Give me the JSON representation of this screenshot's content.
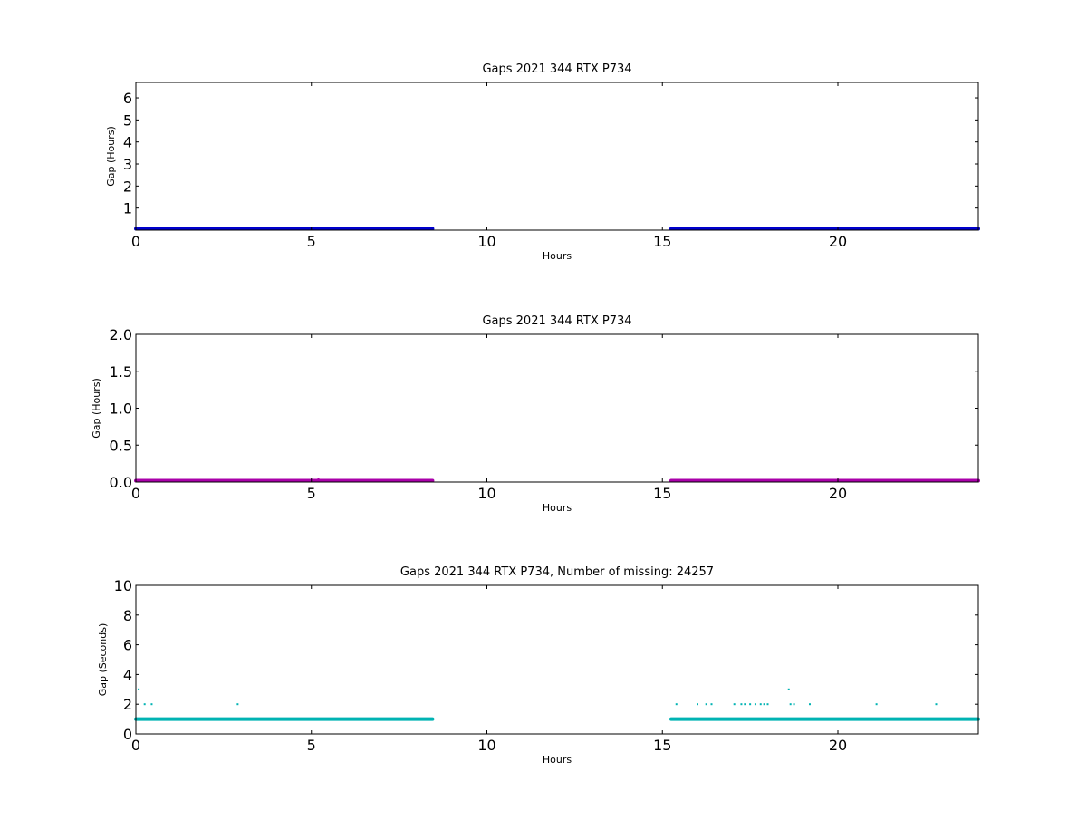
{
  "figure": {
    "background": "#ffffff"
  },
  "chart_data": [
    {
      "type": "scatter",
      "title": "Gaps 2021 344 RTX  P734",
      "xlabel": "Hours",
      "ylabel": "Gap (Hours)",
      "xlim": [
        0,
        24
      ],
      "ylim": [
        0,
        6.7
      ],
      "xticks": [
        0,
        5,
        10,
        15,
        20
      ],
      "yticks": [
        1,
        2,
        3,
        4,
        5,
        6
      ],
      "grid": false,
      "series": [
        {
          "color": "#0000cc",
          "segments": [
            {
              "x_start": 0.0,
              "x_end": 8.45,
              "y": 0.0003
            },
            {
              "x_start": 15.25,
              "x_end": 24.0,
              "y": 0.0003
            }
          ],
          "points": [
            {
              "x": 5.2,
              "y": 0.06
            }
          ]
        }
      ]
    },
    {
      "type": "scatter",
      "title": "Gaps 2021 344 RTX  P734",
      "xlabel": "Hours",
      "ylabel": "Gap (Hours)",
      "xlim": [
        0,
        24
      ],
      "ylim": [
        0,
        2.0
      ],
      "xticks": [
        0,
        5,
        10,
        15,
        20
      ],
      "yticks": [
        "0.0",
        "0.5",
        "1.0",
        "1.5",
        "2.0"
      ],
      "grid": false,
      "series": [
        {
          "color": "#aa00aa",
          "segments": [
            {
              "x_start": 0.0,
              "x_end": 8.45,
              "y": 0.0003
            },
            {
              "x_start": 15.25,
              "x_end": 24.0,
              "y": 0.0003
            }
          ],
          "points": [
            {
              "x": 5.2,
              "y": 0.04
            }
          ]
        }
      ]
    },
    {
      "type": "scatter",
      "title": "Gaps 2021 344 RTX  P734, Number of missing: 24257",
      "xlabel": "Hours",
      "ylabel": "Gap (Seconds)",
      "xlim": [
        0,
        24
      ],
      "ylim": [
        0,
        10
      ],
      "xticks": [
        0,
        5,
        10,
        15,
        20
      ],
      "yticks": [
        0,
        2,
        4,
        6,
        8,
        10
      ],
      "grid": false,
      "series": [
        {
          "color": "#00b3b3",
          "segments": [
            {
              "x_start": 0.0,
              "x_end": 8.45,
              "y": 1
            },
            {
              "x_start": 15.25,
              "x_end": 24.0,
              "y": 1
            }
          ],
          "points": [
            {
              "x": 0.08,
              "y": 3
            },
            {
              "x": 0.25,
              "y": 2
            },
            {
              "x": 0.45,
              "y": 2
            },
            {
              "x": 2.9,
              "y": 2
            },
            {
              "x": 15.4,
              "y": 2
            },
            {
              "x": 16.0,
              "y": 2
            },
            {
              "x": 16.25,
              "y": 2
            },
            {
              "x": 16.4,
              "y": 2
            },
            {
              "x": 17.05,
              "y": 2
            },
            {
              "x": 17.25,
              "y": 2
            },
            {
              "x": 17.35,
              "y": 2
            },
            {
              "x": 17.5,
              "y": 2
            },
            {
              "x": 17.65,
              "y": 2
            },
            {
              "x": 17.8,
              "y": 2
            },
            {
              "x": 17.9,
              "y": 2
            },
            {
              "x": 18.0,
              "y": 2
            },
            {
              "x": 18.6,
              "y": 3
            },
            {
              "x": 18.65,
              "y": 2
            },
            {
              "x": 18.75,
              "y": 2
            },
            {
              "x": 19.2,
              "y": 2
            },
            {
              "x": 21.1,
              "y": 2
            },
            {
              "x": 22.8,
              "y": 2
            }
          ]
        }
      ]
    }
  ]
}
